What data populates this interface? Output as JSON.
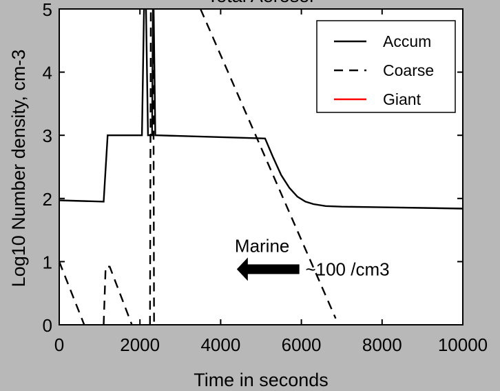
{
  "chart_data": {
    "type": "line",
    "title": "Total Aerosol",
    "xlabel": "Time in seconds",
    "ylabel": "Log10 Number density, cm-3",
    "xlim": [
      0,
      10000
    ],
    "ylim": [
      0,
      5
    ],
    "xticks": [
      "0",
      "2000",
      "4000",
      "6000",
      "8000",
      "10000"
    ],
    "yticks": [
      "0",
      "1",
      "2",
      "3",
      "4",
      "5"
    ],
    "grid": false,
    "legend_position": "top-right",
    "series": [
      {
        "name": "Accum",
        "color": "#000000",
        "style": "solid",
        "x": [
          0,
          1100,
          1200,
          2050,
          2100,
          2150,
          2200,
          2300,
          2320,
          2340,
          2380,
          2420,
          5100,
          5300,
          5500,
          5700,
          5900,
          6100,
          6300,
          6600,
          7000,
          8000,
          9000,
          10000
        ],
        "y": [
          1.97,
          1.95,
          3.0,
          3.0,
          5.0,
          5.0,
          3.0,
          3.0,
          5.0,
          5.0,
          3.0,
          3.0,
          2.95,
          2.65,
          2.37,
          2.17,
          2.03,
          1.95,
          1.91,
          1.88,
          1.87,
          1.86,
          1.85,
          1.84
        ]
      },
      {
        "name": "Coarse",
        "color": "#000000",
        "style": "dashed",
        "segments": [
          {
            "x": [
              0,
              620
            ],
            "y": [
              1.0,
              0.0
            ]
          },
          {
            "x": [
              1100,
              1150,
              1250,
              1800
            ],
            "y": [
              0.0,
              0.92,
              0.92,
              0.0
            ]
          },
          {
            "x": [
              2250,
              2270,
              2330,
              2350
            ],
            "y": [
              0.0,
              5.0,
              5.0,
              0.0
            ]
          },
          {
            "x": [
              3500,
              6850
            ],
            "y": [
              5.0,
              0.1
            ]
          }
        ]
      },
      {
        "name": "Giant",
        "color": "#ff0000",
        "style": "solid",
        "x": [],
        "y": []
      }
    ],
    "annotations": [
      {
        "text": "Marine",
        "x": 4350,
        "y": 1.25
      },
      {
        "text": "~100 /cm3",
        "x": 6100,
        "y": 0.88
      }
    ],
    "arrow": {
      "from_x": 5950,
      "to_x": 4400,
      "y": 0.88
    }
  }
}
